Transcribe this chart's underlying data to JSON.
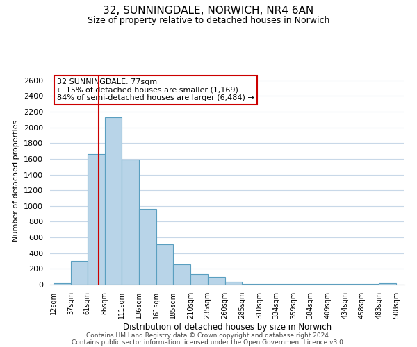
{
  "title": "32, SUNNINGDALE, NORWICH, NR4 6AN",
  "subtitle": "Size of property relative to detached houses in Norwich",
  "xlabel": "Distribution of detached houses by size in Norwich",
  "ylabel": "Number of detached properties",
  "footer_line1": "Contains HM Land Registry data © Crown copyright and database right 2024.",
  "footer_line2": "Contains public sector information licensed under the Open Government Licence v3.0.",
  "annotation_title": "32 SUNNINGDALE: 77sqm",
  "annotation_line1": "← 15% of detached houses are smaller (1,169)",
  "annotation_line2": "84% of semi-detached houses are larger (6,484) →",
  "bar_left_edges": [
    12,
    37,
    61,
    86,
    111,
    136,
    161,
    185,
    210,
    235,
    260,
    285,
    310,
    334,
    359,
    384,
    409,
    434,
    458,
    483
  ],
  "bar_widths": [
    25,
    24,
    25,
    25,
    25,
    25,
    24,
    25,
    25,
    25,
    25,
    25,
    24,
    25,
    25,
    25,
    25,
    24,
    25,
    25
  ],
  "bar_heights": [
    20,
    300,
    1660,
    2130,
    1590,
    960,
    510,
    255,
    130,
    100,
    35,
    10,
    10,
    5,
    5,
    5,
    5,
    5,
    5,
    20
  ],
  "tick_labels": [
    "12sqm",
    "37sqm",
    "61sqm",
    "86sqm",
    "111sqm",
    "136sqm",
    "161sqm",
    "185sqm",
    "210sqm",
    "235sqm",
    "260sqm",
    "285sqm",
    "310sqm",
    "334sqm",
    "359sqm",
    "384sqm",
    "409sqm",
    "434sqm",
    "458sqm",
    "483sqm",
    "508sqm"
  ],
  "tick_positions": [
    12,
    37,
    61,
    86,
    111,
    136,
    161,
    185,
    210,
    235,
    260,
    285,
    310,
    334,
    359,
    384,
    409,
    434,
    458,
    483,
    508
  ],
  "bar_color": "#b8d4e8",
  "bar_edge_color": "#5a9fc0",
  "vline_x": 77,
  "vline_color": "#cc0000",
  "annotation_box_color": "#cc0000",
  "ylim": [
    0,
    2650
  ],
  "yticks": [
    0,
    200,
    400,
    600,
    800,
    1000,
    1200,
    1400,
    1600,
    1800,
    2000,
    2200,
    2400,
    2600
  ],
  "bg_color": "#ffffff",
  "grid_color": "#c8d8e8",
  "xlim_left": 7,
  "xlim_right": 520
}
